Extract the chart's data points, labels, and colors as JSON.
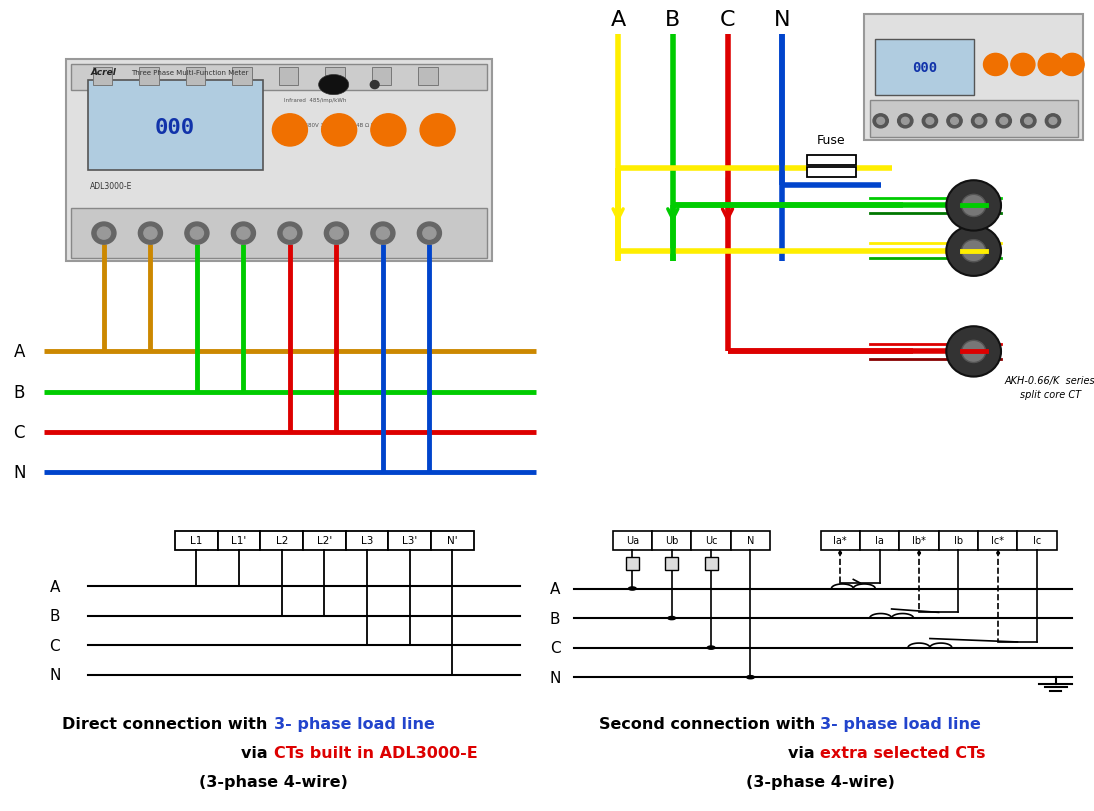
{
  "bg_color": "#ffffff",
  "phase_labels": [
    "A",
    "B",
    "C",
    "N"
  ],
  "phase_colors_left": [
    "#cc8800",
    "#00cc00",
    "#dd0000",
    "#0044cc"
  ],
  "phase_colors_right": [
    "#ffee00",
    "#00cc00",
    "#dd0000",
    "#0044cc"
  ],
  "terminal_labels_left": [
    "L1",
    "L1'",
    "L2",
    "L2'",
    "L3",
    "L3'",
    "N'"
  ],
  "terminal_labels_right_v": [
    "Ua",
    "Ub",
    "Uc",
    "N"
  ],
  "terminal_labels_right_i": [
    "Ia*",
    "Ia",
    "Ib*",
    "Ib",
    "Ic*",
    "Ic"
  ],
  "fuse_label": "Fuse",
  "ct_label": "AKH-0.66/K  series\nsplit core CT",
  "left_cap1_black": "Direct connection with ",
  "left_cap1_blue": "3- phase load line",
  "left_cap2_black": "via ",
  "left_cap2_red": "CTs built in ADL3000-E",
  "left_cap3": "(3-phase 4-wire)",
  "right_cap1_black": "Second connection with ",
  "right_cap1_blue": "3- phase load line",
  "right_cap2_black": "via ",
  "right_cap2_red": "extra selected CTs",
  "right_cap3": "(3-phase 4-wire)"
}
